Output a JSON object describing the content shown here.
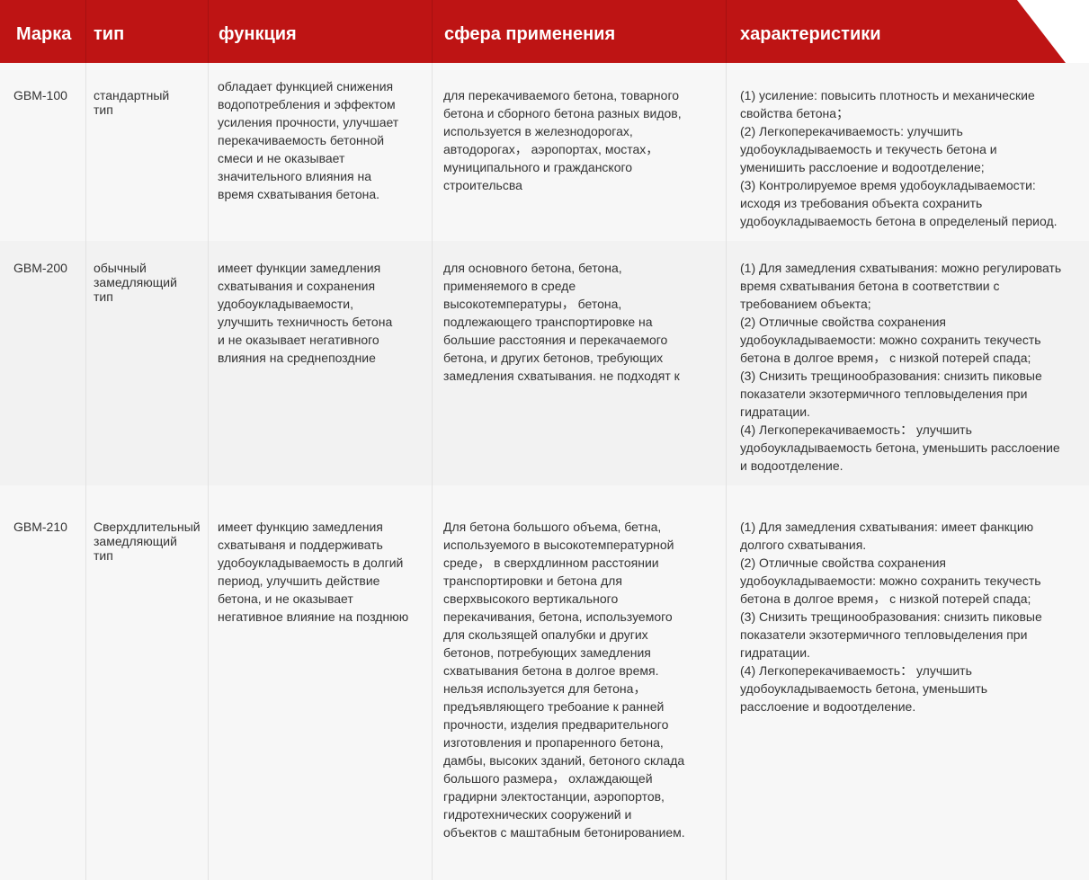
{
  "colors": {
    "header": "#be1414",
    "row_odd": "#f7f7f7",
    "row_even": "#f2f2f2"
  },
  "header": [
    "Марка",
    "тип",
    "функция",
    "сфера применения",
    "характеристики"
  ],
  "rows": [
    {
      "mark": "GBM-100",
      "type": "стандартный\nтип",
      "function": "обладает функцией снижения\nводопотребления и эффектом\nусиления прочности, улучшает\nперекачиваемость бетонной\nсмеси и не оказывает\nзначительного влияния на\nвремя схватывания бетона.",
      "scope": "для перекачиваемого бетона, товарного\nбетона и сборного бетона разных видов,\nиспользуется в железнодорогах,\nавтодорогах，  аэропортах, мостах，\nмуниципального и гражданского\nстроительсва",
      "features": "(1) усиление: повысить плотность и механические\nсвойства бетона；\n(2) Легкоперекачиваемость: улучшить\nудобоукладываемость и текучесть бетона и\nуменишить расслоение и водоотделение;\n(3) Контролируемое время удобоукладываемости:\nисходя из требования объекта сохранить\nудобоукладываемость бетона в определеный период."
    },
    {
      "mark": "GBM-200",
      "type": "обычный\nзамедляющий\nтип",
      "function": "имеет функции замедления\nсхватывания и сохранения\nудобоукладываемости,\nулучшить техничность бетона\nи не оказывает негативного\nвлияния на среднепоздние",
      "scope": "для основного бетона, бетона,\nприменяемого в среде\nвысокотемпературы，  бетона,\nподлежающего транспортировке на\nбольшие расстояния и перекачаемого\nбетона, и других бетонов, требующих\nзамедления схватывания. не подходят к",
      "features": "(1) Для замедления схватывания: можно регулировать\nвремя схватывания бетона в соответствии с\nтребованием объекта;\n(2) Отличные свойства сохранения\nудобоукладываемости: можно сохранить текучесть\nбетона в долгое время，  с низкой потерей спада;\n(3)  Снизить трещинообразования: снизить пиковые\nпоказатели экзотермичного тепловыделения при\nгидратации.\n(4) Легкоперекачиваемость：  улучшить\nудобоукладываемость бетона, уменьшить расслоение\nи водоотделение."
    },
    {
      "mark": "GBM-210",
      "type": "Сверхдлительный\nзамедляющий\nтип",
      "function": "имеет функцию замедления\nсхватываня и поддерживать\nудобоукладываемость в долгий\nпериод, улучшить действие\nбетона, и не оказывает\nнегативное влияние на позднюю",
      "scope": "Для бетона большого объема, бетна,\nиспользуемого в высокотемпературной\nсреде，  в сверхдлинном расстоянии\nтранспортировки и бетона для\nсверхвысокого вертикального\nперекачивания, бетона, используемого\nдля скользящей опалубки и других\nбетонов, потребующих замедления\nсхватывания бетона в долгое время.\nнельзя используется для бетона，\nпредъявляющего требоание к ранней\nпрочности, изделия предварительного\nизготовления и пропаренного бетона,\nдамбы, высоких зданий, бетоного склада\nбольшого размера，  охлаждающей\nградирни электостанции, аэропортов,\nгидротехнических сооружений и\nобъектов с маштабным бетонированием.",
      "features": "(1) Для замедления схватывания: имеет фанкцию\nдолгого схватывания.\n(2) Отличные свойства сохранения\nудобоукладываемости: можно сохранить текучесть\nбетона в долгое время，  с низкой потерей спада;\n(3)  Снизить трещинообразования: снизить пиковые\nпоказатели экзотермичного тепловыделения при\nгидратации.\n(4) Легкоперекачиваемость：  улучшить\nудобоукладываемость бетона, уменьшить\nрасслоение и водоотделение."
    }
  ]
}
